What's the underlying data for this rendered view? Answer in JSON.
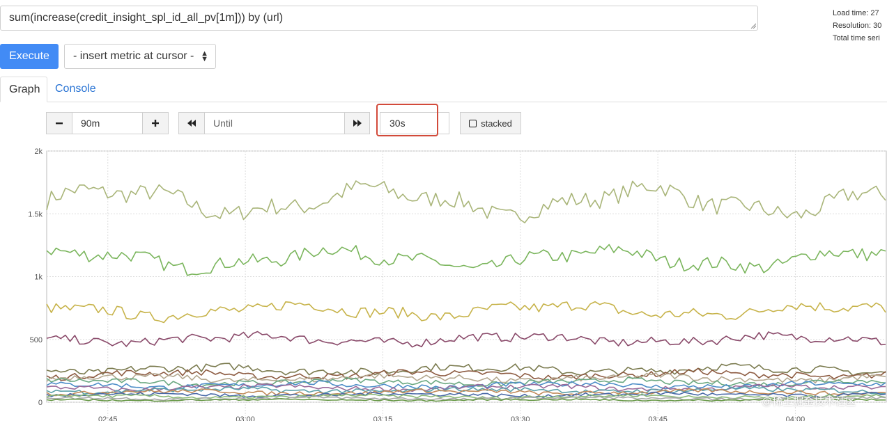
{
  "query": {
    "expression": "sum(increase(credit_insight_spl_id_all_pv[1m])) by (url)"
  },
  "stats": {
    "load_time": "Load time: 27",
    "resolution": "Resolution: 30",
    "total_series": "Total time seri"
  },
  "toolbar": {
    "execute_label": "Execute",
    "metric_select_label": "- insert metric at cursor -"
  },
  "tabs": [
    {
      "label": "Graph",
      "active": true
    },
    {
      "label": "Console",
      "active": false
    }
  ],
  "graph_controls": {
    "range": "90m",
    "until_placeholder": "Until",
    "resolution": "30s",
    "stacked_label": "stacked"
  },
  "watermark": "@稀土掘金技术社区",
  "chart_data": {
    "type": "line",
    "ylim": [
      0,
      2000
    ],
    "y_ticks": [
      "0",
      "500",
      "1k",
      "1.5k",
      "2k"
    ],
    "x_range": [
      "02:40",
      "04:10"
    ],
    "x_ticks": [
      "02:45",
      "03:00",
      "03:15",
      "03:30",
      "03:45",
      "04:00"
    ],
    "grid": true,
    "legend": "none",
    "points_per_series": 180,
    "series": [
      {
        "color": "#a9b579",
        "base": 1600,
        "amp": 90,
        "noise": 70
      },
      {
        "color": "#7ab55c",
        "base": 1140,
        "amp": 60,
        "noise": 55
      },
      {
        "color": "#c7b34a",
        "base": 730,
        "amp": 40,
        "noise": 45
      },
      {
        "color": "#8a4a6a",
        "base": 500,
        "amp": 25,
        "noise": 35
      },
      {
        "color": "#7a7a4e",
        "base": 260,
        "amp": 20,
        "noise": 30
      },
      {
        "color": "#8c5a40",
        "base": 220,
        "amp": 18,
        "noise": 25
      },
      {
        "color": "#b4a890",
        "base": 190,
        "amp": 16,
        "noise": 25
      },
      {
        "color": "#6aa880",
        "base": 160,
        "amp": 14,
        "noise": 20
      },
      {
        "color": "#4e8ec8",
        "base": 135,
        "amp": 14,
        "noise": 20
      },
      {
        "color": "#9a6a9a",
        "base": 115,
        "amp": 12,
        "noise": 18
      },
      {
        "color": "#5aa0a8",
        "base": 95,
        "amp": 10,
        "noise": 18
      },
      {
        "color": "#c08a5a",
        "base": 80,
        "amp": 10,
        "noise": 16
      },
      {
        "color": "#4a6aa8",
        "base": 60,
        "amp": 8,
        "noise": 14
      },
      {
        "color": "#8ab878",
        "base": 45,
        "amp": 8,
        "noise": 12
      },
      {
        "color": "#a8a8a8",
        "base": 30,
        "amp": 6,
        "noise": 10
      },
      {
        "color": "#6a9a4a",
        "base": 18,
        "amp": 4,
        "noise": 6
      }
    ]
  }
}
